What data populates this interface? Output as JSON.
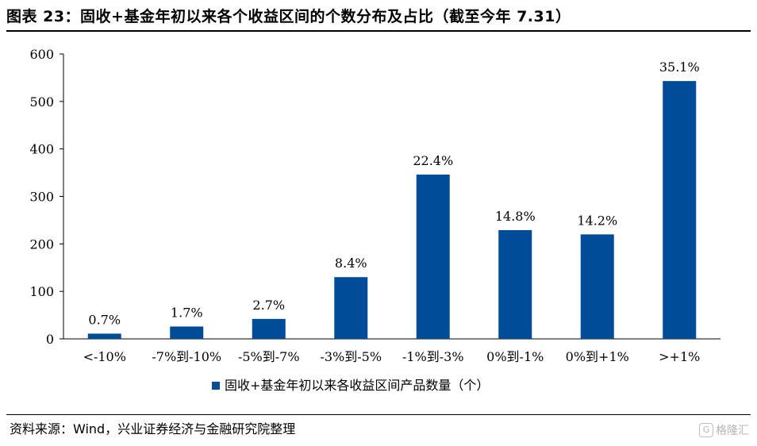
{
  "title": "图表 23：固收+基金年初以来各个收益区间的个数分布及占比（截至今年 7.31）",
  "source": "资料来源：Wind，兴业证券经济与金融研究院整理",
  "watermark": "格隆汇",
  "colors": {
    "bar": "#004C98",
    "axis": "#000000"
  },
  "chart_data": {
    "type": "bar",
    "categories": [
      "<-10%",
      "-7%到-10%",
      "-5%到-7%",
      "-3%到-5%",
      "-1%到-3%",
      "0%到-1%",
      "0%到+1%",
      ">+1%"
    ],
    "series": [
      {
        "name": "固收+基金年初以来各收益区间产品数量（个）",
        "values": [
          11,
          26,
          42,
          130,
          346,
          229,
          220,
          543
        ]
      }
    ],
    "data_labels": [
      "0.7%",
      "1.7%",
      "2.7%",
      "8.4%",
      "22.4%",
      "14.8%",
      "14.2%",
      "35.1%"
    ],
    "yticks": [
      0,
      100,
      200,
      300,
      400,
      500,
      600
    ],
    "ylim": [
      0,
      600
    ],
    "legend_position": "bottom",
    "grid": false
  }
}
